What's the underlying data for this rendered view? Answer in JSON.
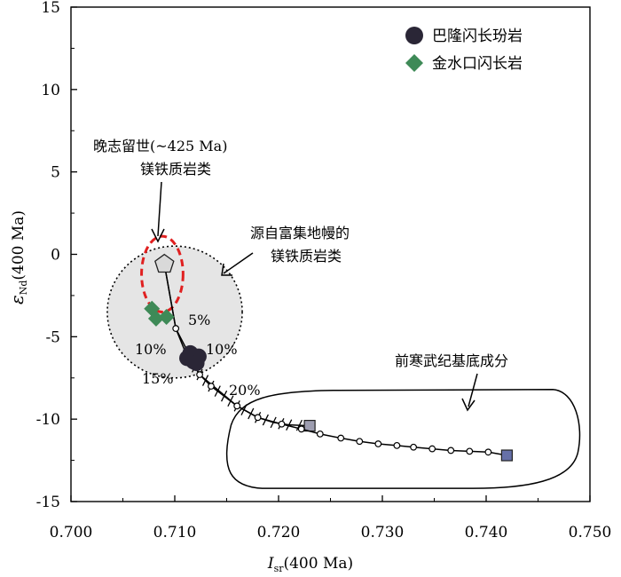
{
  "chart_data": {
    "type": "scatter",
    "title": "",
    "xlabel": "I",
    "xlabel_sub": "sr",
    "xlabel_suffix": "(400 Ma)",
    "ylabel": "ε",
    "ylabel_sub": "Nd",
    "ylabel_suffix": "(400 Ma)",
    "xlim": [
      0.7,
      0.75
    ],
    "ylim": [
      -15,
      15
    ],
    "x_ticks": [
      0.7,
      0.71,
      0.72,
      0.73,
      0.74,
      0.75
    ],
    "x_tick_labels": [
      "0.700",
      "0.710",
      "0.720",
      "0.730",
      "0.740",
      "0.750"
    ],
    "y_ticks": [
      15,
      10,
      5,
      0,
      -5,
      -10,
      -15
    ],
    "y_tick_labels": [
      "15",
      "10",
      "5",
      "0",
      "-5",
      "-10",
      "-15"
    ],
    "grid": false,
    "legend_position": "top-right",
    "series": [
      {
        "name": "巴隆闪长玢岩",
        "marker": "circle",
        "color": "#2a2636",
        "points": [
          [
            0.7112,
            -6.3
          ],
          [
            0.7118,
            -6.5
          ],
          [
            0.7123,
            -6.2
          ],
          [
            0.7115,
            -6.0
          ],
          [
            0.7121,
            -6.6
          ]
        ]
      },
      {
        "name": "金水口闪长岩",
        "marker": "diamond",
        "color": "#3e8a57",
        "points": [
          [
            0.7078,
            -3.3
          ],
          [
            0.7082,
            -3.9
          ],
          [
            0.7092,
            -3.8
          ]
        ]
      }
    ],
    "mixing_curves": [
      {
        "points": [
          [
            0.709,
            -0.6
          ],
          [
            0.7101,
            -4.5
          ],
          [
            0.711,
            -5.9
          ],
          [
            0.7124,
            -7.3
          ],
          [
            0.7135,
            -8.0
          ],
          [
            0.716,
            -9.2
          ],
          [
            0.718,
            -9.9
          ],
          [
            0.7195,
            -10.2
          ],
          [
            0.721,
            -10.35
          ],
          [
            0.723,
            -10.4
          ]
        ],
        "tick_marks_from": 0.711,
        "end_marker": [
          0.723,
          -10.4
        ]
      },
      {
        "points": [
          [
            0.709,
            -0.6
          ],
          [
            0.7101,
            -4.5
          ],
          [
            0.7124,
            -7.3
          ],
          [
            0.716,
            -9.2
          ],
          [
            0.718,
            -9.9
          ],
          [
            0.7203,
            -10.3
          ],
          [
            0.7222,
            -10.6
          ],
          [
            0.724,
            -10.9
          ],
          [
            0.726,
            -11.15
          ],
          [
            0.7278,
            -11.35
          ],
          [
            0.7296,
            -11.5
          ],
          [
            0.7314,
            -11.6
          ],
          [
            0.733,
            -11.7
          ],
          [
            0.7348,
            -11.8
          ],
          [
            0.7366,
            -11.9
          ],
          [
            0.7384,
            -11.95
          ],
          [
            0.7402,
            -12.0
          ],
          [
            0.742,
            -12.2
          ]
        ],
        "nodes": [
          [
            0.7101,
            -4.5
          ],
          [
            0.7124,
            -7.3
          ],
          [
            0.7135,
            -8.0
          ],
          [
            0.716,
            -9.2
          ],
          [
            0.718,
            -9.9
          ],
          [
            0.7203,
            -10.3
          ],
          [
            0.7222,
            -10.6
          ],
          [
            0.724,
            -10.9
          ],
          [
            0.726,
            -11.15
          ],
          [
            0.7278,
            -11.35
          ],
          [
            0.7296,
            -11.5
          ],
          [
            0.7314,
            -11.6
          ],
          [
            0.733,
            -11.7
          ],
          [
            0.7348,
            -11.8
          ],
          [
            0.7366,
            -11.9
          ],
          [
            0.7384,
            -11.95
          ],
          [
            0.7402,
            -12.0
          ]
        ],
        "end_marker": [
          0.742,
          -12.2
        ]
      }
    ],
    "start_marker": {
      "shape": "pentagon",
      "point": [
        0.709,
        -0.6
      ]
    },
    "enriched_mantle_field": {
      "center": [
        0.71,
        -3.5
      ],
      "radius_x": 0.0065,
      "radius_y": 4.0
    },
    "late_silurian_field": {
      "center": [
        0.7088,
        -1.2
      ],
      "radius_x": 0.002,
      "radius_y": 2.3
    },
    "precambrian_basement_field": {
      "x_range": [
        0.715,
        0.749
      ],
      "y_range": [
        -14.2,
        -8.2
      ]
    },
    "annotations": {
      "late_silurian_line1": "晚志留世(~425 Ma)",
      "late_silurian_line2": "镁铁质岩类",
      "enriched_mantle_line1": "源自富集地幔的",
      "enriched_mantle_line2": "镁铁质岩类",
      "basement": "前寒武纪基底成分",
      "pct_5": "5%",
      "pct_10_left": "10%",
      "pct_10_right": "10%",
      "pct_15": "15%",
      "pct_20": "20%"
    }
  }
}
